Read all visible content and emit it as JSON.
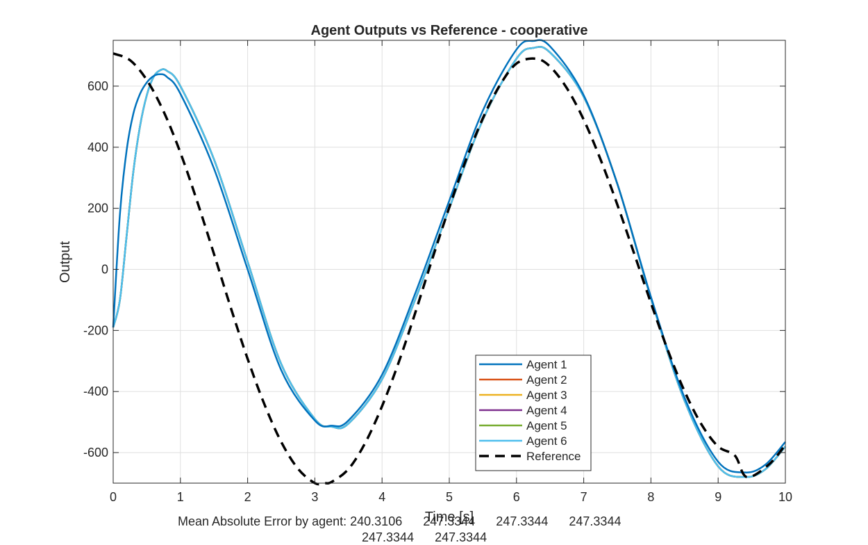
{
  "chart_data": {
    "type": "line",
    "title": "Agent Outputs vs Reference - cooperative",
    "xlabel": "Time [s]",
    "ylabel": "Output",
    "xlim": [
      0,
      10
    ],
    "ylim": [
      -700,
      750
    ],
    "xticks": [
      0,
      1,
      2,
      3,
      4,
      5,
      6,
      7,
      8,
      9,
      10
    ],
    "yticks": [
      -600,
      -400,
      -200,
      0,
      200,
      400,
      600
    ],
    "grid": true,
    "legend_position": "bottom-center",
    "series": [
      {
        "name": "Agent 1",
        "color": "#0072BD",
        "style": "solid",
        "x": [
          0,
          0.1,
          0.2,
          0.3,
          0.4,
          0.5,
          0.6,
          0.7,
          0.8,
          1,
          1.5,
          2,
          2.5,
          3,
          3.25,
          3.5,
          4,
          4.5,
          5,
          5.5,
          6,
          6.25,
          6.5,
          7,
          7.5,
          8,
          8.5,
          9,
          9.4,
          9.7,
          10
        ],
        "y": [
          -190,
          180,
          390,
          510,
          575,
          612,
          633,
          639,
          630,
          575,
          330,
          0,
          -330,
          -495,
          -512,
          -495,
          -345,
          -75,
          225,
          520,
          720,
          748,
          730,
          570,
          280,
          -90,
          -420,
          -630,
          -665,
          -640,
          -565
        ]
      },
      {
        "name": "Agent 2",
        "color": "#D95319",
        "style": "solid",
        "x": [
          0,
          0.1,
          0.2,
          0.3,
          0.4,
          0.5,
          0.6,
          0.7,
          0.8,
          1,
          1.5,
          2,
          2.5,
          3,
          3.25,
          3.5,
          4,
          4.5,
          5,
          5.5,
          6,
          6.25,
          6.5,
          7,
          7.5,
          8,
          8.5,
          9,
          9.4,
          9.7,
          10
        ],
        "y": [
          -190,
          -100,
          110,
          320,
          470,
          570,
          630,
          652,
          650,
          600,
          360,
          25,
          -310,
          -490,
          -515,
          -505,
          -360,
          -95,
          200,
          490,
          690,
          725,
          710,
          565,
          280,
          -95,
          -430,
          -645,
          -680,
          -655,
          -580
        ]
      },
      {
        "name": "Agent 3",
        "color": "#EDB120",
        "style": "solid",
        "x": [
          0,
          0.1,
          0.2,
          0.3,
          0.4,
          0.5,
          0.6,
          0.7,
          0.8,
          1,
          1.5,
          2,
          2.5,
          3,
          3.25,
          3.5,
          4,
          4.5,
          5,
          5.5,
          6,
          6.25,
          6.5,
          7,
          7.5,
          8,
          8.5,
          9,
          9.4,
          9.7,
          10
        ],
        "y": [
          -190,
          -100,
          110,
          320,
          470,
          570,
          630,
          652,
          650,
          600,
          360,
          25,
          -310,
          -490,
          -515,
          -505,
          -360,
          -95,
          200,
          490,
          690,
          725,
          710,
          565,
          280,
          -95,
          -430,
          -645,
          -680,
          -655,
          -580
        ]
      },
      {
        "name": "Agent 4",
        "color": "#7E2F8E",
        "style": "solid",
        "x": [
          0,
          0.1,
          0.2,
          0.3,
          0.4,
          0.5,
          0.6,
          0.7,
          0.8,
          1,
          1.5,
          2,
          2.5,
          3,
          3.25,
          3.5,
          4,
          4.5,
          5,
          5.5,
          6,
          6.25,
          6.5,
          7,
          7.5,
          8,
          8.5,
          9,
          9.4,
          9.7,
          10
        ],
        "y": [
          -190,
          -100,
          110,
          320,
          470,
          570,
          630,
          652,
          650,
          600,
          360,
          25,
          -310,
          -490,
          -515,
          -505,
          -360,
          -95,
          200,
          490,
          690,
          725,
          710,
          565,
          280,
          -95,
          -430,
          -645,
          -680,
          -655,
          -580
        ]
      },
      {
        "name": "Agent 5",
        "color": "#77AC30",
        "style": "solid",
        "x": [
          0,
          0.1,
          0.2,
          0.3,
          0.4,
          0.5,
          0.6,
          0.7,
          0.8,
          1,
          1.5,
          2,
          2.5,
          3,
          3.25,
          3.5,
          4,
          4.5,
          5,
          5.5,
          6,
          6.25,
          6.5,
          7,
          7.5,
          8,
          8.5,
          9,
          9.4,
          9.7,
          10
        ],
        "y": [
          -190,
          -100,
          110,
          320,
          470,
          570,
          630,
          652,
          650,
          600,
          360,
          25,
          -310,
          -490,
          -515,
          -505,
          -360,
          -95,
          200,
          490,
          690,
          725,
          710,
          565,
          280,
          -95,
          -430,
          -645,
          -680,
          -655,
          -580
        ]
      },
      {
        "name": "Agent 6",
        "color": "#4DBEEE",
        "style": "solid",
        "x": [
          0,
          0.1,
          0.2,
          0.3,
          0.4,
          0.5,
          0.6,
          0.7,
          0.8,
          1,
          1.5,
          2,
          2.5,
          3,
          3.25,
          3.5,
          4,
          4.5,
          5,
          5.5,
          6,
          6.25,
          6.5,
          7,
          7.5,
          8,
          8.5,
          9,
          9.4,
          9.7,
          10
        ],
        "y": [
          -190,
          -100,
          110,
          320,
          470,
          570,
          630,
          652,
          650,
          600,
          360,
          25,
          -310,
          -490,
          -515,
          -505,
          -360,
          -95,
          200,
          490,
          690,
          725,
          710,
          565,
          280,
          -95,
          -430,
          -645,
          -680,
          -655,
          -580
        ]
      },
      {
        "name": "Reference",
        "color": "#000000",
        "style": "dashed",
        "x": [
          0,
          0.25,
          0.5,
          0.75,
          1,
          1.25,
          1.5,
          1.75,
          2,
          2.25,
          2.5,
          2.75,
          3,
          3.1416,
          3.25,
          3.5,
          3.75,
          4,
          4.25,
          4.5,
          4.75,
          5,
          5.25,
          5.5,
          5.75,
          6,
          6.2832,
          6.5,
          6.75,
          7,
          7.25,
          7.5,
          7.75,
          8,
          8.25,
          8.5,
          8.75,
          9,
          9.25,
          9.4248,
          9.75,
          10
        ],
        "y": [
          707,
          685,
          620,
          517,
          382,
          222,
          50,
          -126,
          -293,
          -442,
          -565,
          -653,
          -700,
          -700,
          -696,
          -654,
          -568,
          -448,
          -303,
          -138,
          36,
          203,
          359,
          495,
          602,
          674,
          690,
          664,
          593,
          490,
          360,
          212,
          52,
          -110,
          -264,
          -399,
          -507,
          -580,
          -610,
          -680,
          -640,
          -575
        ]
      }
    ]
  },
  "footer": {
    "mae_line1": "Mean Absolute Error by agent: 240.3106      247.3344      247.3344      247.3344",
    "mae_line2": "247.3344      247.3344"
  }
}
